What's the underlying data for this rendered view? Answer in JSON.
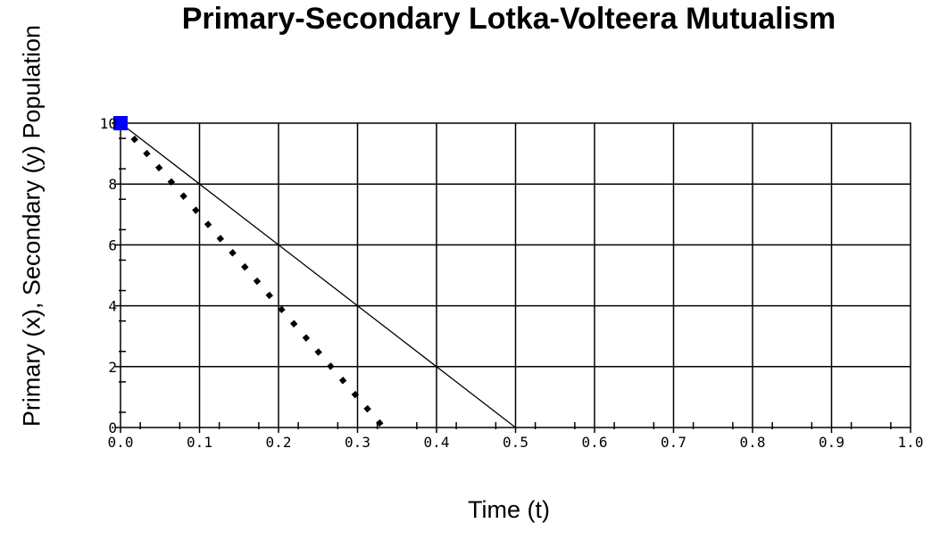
{
  "chart_data": {
    "type": "line",
    "title": "Primary-Secondary Lotka-Volteera Mutualism",
    "xlabel": "Time (t)",
    "ylabel": "Primary (x), Secondary (y) Population",
    "xlim": [
      0,
      1.0
    ],
    "ylim": [
      0,
      10
    ],
    "x_ticks": [
      "0.0",
      "0.1",
      "0.2",
      "0.3",
      "0.4",
      "0.5",
      "0.6",
      "0.7",
      "0.8",
      "0.9",
      "1.0"
    ],
    "y_ticks": [
      "0",
      "2",
      "4",
      "6",
      "8",
      "10"
    ],
    "grid": true,
    "series": [
      {
        "style": "solid",
        "color": "#000000",
        "x": [
          0,
          0.1,
          0.2,
          0.3,
          0.4,
          0.5
        ],
        "y": [
          10,
          8,
          6,
          4,
          2,
          0
        ]
      },
      {
        "style": "dotted",
        "color": "#000000",
        "x": [
          0,
          0.333
        ],
        "y": [
          10,
          0
        ]
      }
    ],
    "markers": [
      {
        "x": 0,
        "y": 10,
        "color": "#0000ff",
        "shape": "square"
      }
    ]
  }
}
